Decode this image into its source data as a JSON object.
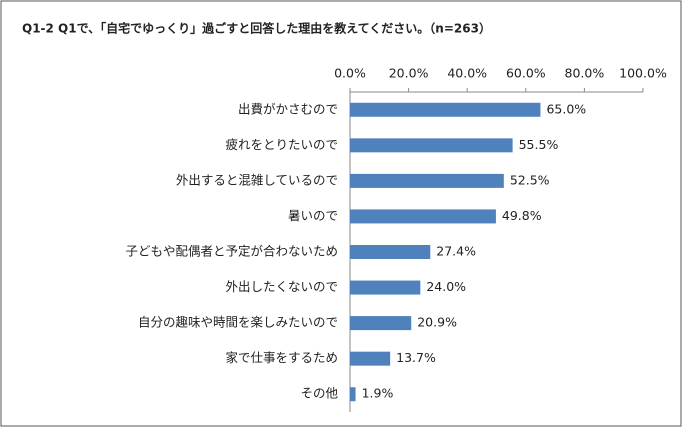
{
  "chart_data": {
    "type": "bar",
    "orientation": "horizontal",
    "title": "Q1-2 Q1で、「自宅でゆっくり」過ごすと回答した理由を教えてください。（n=263）",
    "categories": [
      "出費がかさむので",
      "疲れをとりたいので",
      "外出すると混雑しているので",
      "暑いので",
      "子どもや配偶者と予定が合わないため",
      "外出したくないので",
      "自分の趣味や時間を楽しみたいので",
      "家で仕事をするため",
      "その他"
    ],
    "values": [
      65.0,
      55.5,
      52.5,
      49.8,
      27.4,
      24.0,
      20.9,
      13.7,
      1.9
    ],
    "value_labels": [
      "65.0%",
      "55.5%",
      "52.5%",
      "49.8%",
      "27.4%",
      "24.0%",
      "20.9%",
      "13.7%",
      "1.9%"
    ],
    "color": "#4f81bd",
    "xlim": [
      0,
      100
    ],
    "xticks": [
      {
        "value": 0,
        "label": "0.0%"
      },
      {
        "value": 20,
        "label": "20.0%"
      },
      {
        "value": 40,
        "label": "40.0%"
      },
      {
        "value": 60,
        "label": "60.0%"
      },
      {
        "value": 80,
        "label": "80.0%"
      },
      {
        "value": 100,
        "label": "100.0%"
      }
    ],
    "grid": false
  }
}
